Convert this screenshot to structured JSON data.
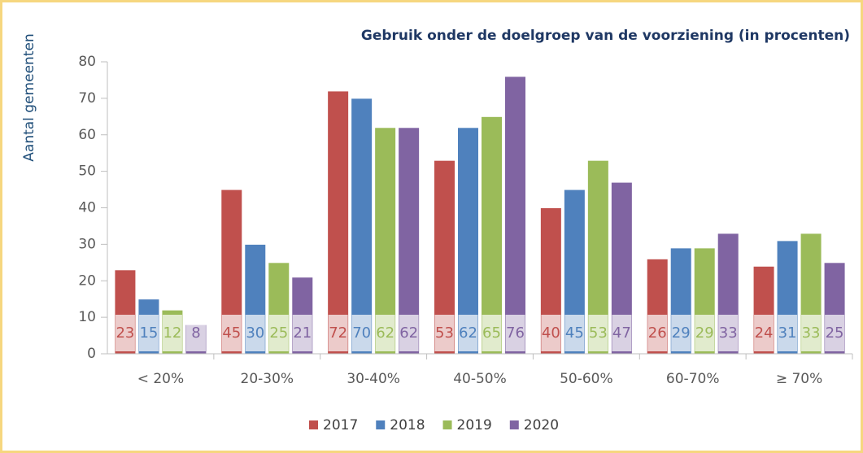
{
  "chart_data": {
    "type": "bar",
    "title": "Gebruik onder de doelgroep van de voorziening (in procenten)",
    "y_label": "Aantal gemeenten",
    "categories": [
      "< 20%",
      "20-30%",
      "30-40%",
      "40-50%",
      "50-60%",
      "60-70%",
      "≥ 70%"
    ],
    "series": [
      {
        "name": "2017",
        "color": "#c0504d",
        "values": [
          23,
          45,
          72,
          53,
          40,
          26,
          24
        ]
      },
      {
        "name": "2018",
        "color": "#4f81bd",
        "values": [
          15,
          30,
          70,
          62,
          45,
          29,
          31
        ]
      },
      {
        "name": "2019",
        "color": "#9bbb59",
        "values": [
          12,
          25,
          62,
          65,
          53,
          29,
          33
        ]
      },
      {
        "name": "2020",
        "color": "#8064a2",
        "values": [
          8,
          21,
          62,
          76,
          47,
          33,
          25
        ]
      }
    ],
    "ylim": [
      0,
      80
    ],
    "yticks": [
      0,
      10,
      20,
      30,
      40,
      50,
      60,
      70,
      80
    ],
    "grid": false,
    "legend": "bottom"
  }
}
